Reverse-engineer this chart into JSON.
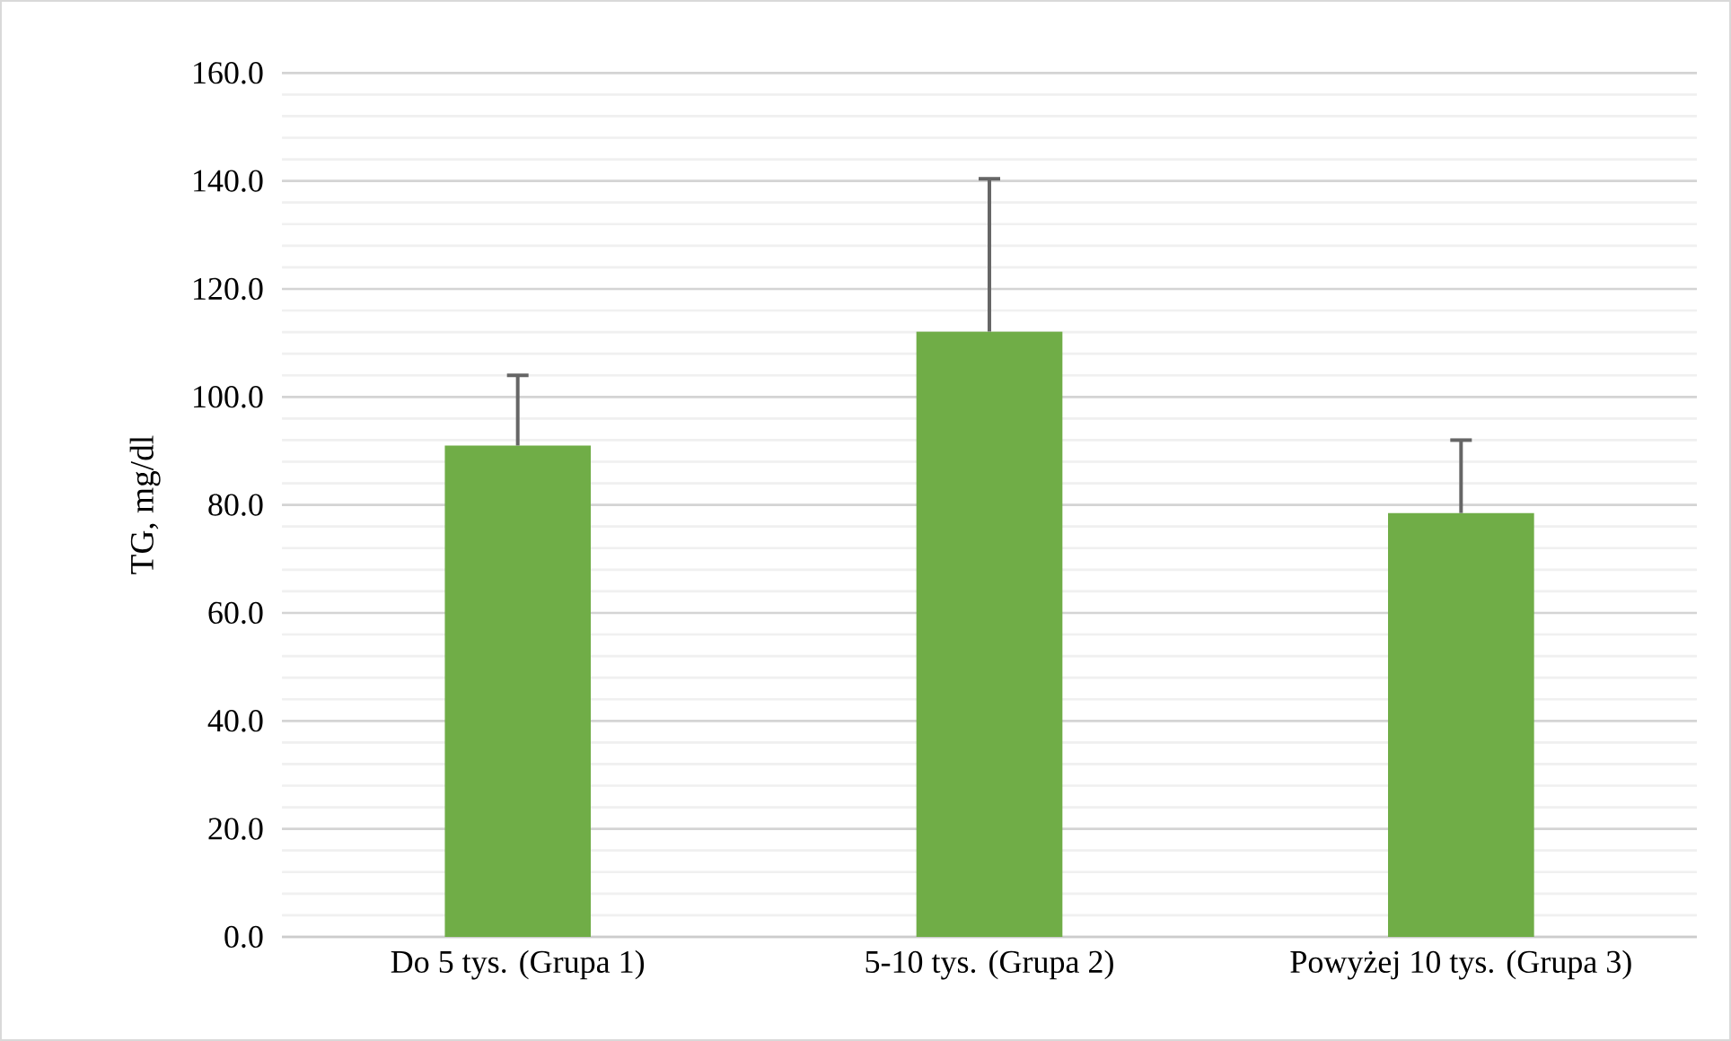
{
  "chart_data": {
    "type": "bar",
    "ylabel": "TG, mg/dl",
    "categories": [
      "Do 5 tys. (Grupa 1)",
      "5-10 tys. (Grupa 2)",
      "Powyżej 10 tys. (Grupa 3)"
    ],
    "values": [
      91.0,
      112.1,
      78.5
    ],
    "errors": [
      [
        91.0,
        104.0
      ],
      [
        112.1,
        140.4
      ],
      [
        78.5,
        92.0
      ]
    ],
    "color": "#70ad47",
    "ylim": [
      0,
      160
    ],
    "yticks": [
      {
        "value": 0,
        "label": "0.0"
      },
      {
        "value": 20,
        "label": "20.0"
      },
      {
        "value": 40,
        "label": "40.0"
      },
      {
        "value": 60,
        "label": "60.0"
      },
      {
        "value": 80,
        "label": "80.0"
      },
      {
        "value": 100,
        "label": "100.0"
      },
      {
        "value": 120,
        "label": "120.0"
      },
      {
        "value": 140,
        "label": "140.0"
      },
      {
        "value": 160,
        "label": "160.0"
      }
    ],
    "grid": true
  }
}
